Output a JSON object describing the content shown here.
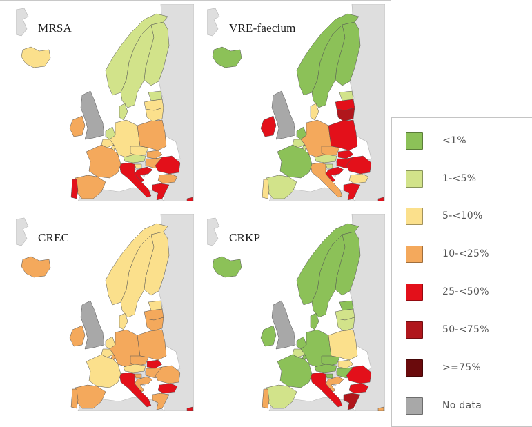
{
  "figure": {
    "panels": [
      {
        "id": "mrsa",
        "title": "MRSA"
      },
      {
        "id": "vre",
        "title": "VRE-faecium"
      },
      {
        "id": "crec",
        "title": "CREC"
      },
      {
        "id": "crkp",
        "title": "CRKP"
      }
    ]
  },
  "legend": {
    "items": [
      {
        "label": "<1%",
        "color": "#8cc158"
      },
      {
        "label": "1-<5%",
        "color": "#d2e38a"
      },
      {
        "label": "5-<10%",
        "color": "#fbe08c"
      },
      {
        "label": "10-<25%",
        "color": "#f4a95c"
      },
      {
        "label": "25-<50%",
        "color": "#e3101a"
      },
      {
        "label": "50-<75%",
        "color": "#b0161c"
      },
      {
        "label": ">=75%",
        "color": "#6a0a0c"
      },
      {
        "label": "No data",
        "color": "#a8a8a8"
      }
    ]
  },
  "colors": {
    "background_land": "#dedede",
    "sea": "#ffffff",
    "border": "#555555"
  },
  "chart_data": [
    {
      "type": "choropleth",
      "title": "MRSA",
      "categories": [
        "<1%",
        "1-<5%",
        "5-<10%",
        "10-<25%",
        "25-<50%",
        "50-<75%",
        ">=75%",
        "No data"
      ],
      "regions": {
        "Iceland": "5-<10%",
        "Norway": "1-<5%",
        "Sweden": "1-<5%",
        "Finland": "1-<5%",
        "Estonia": "1-<5%",
        "Latvia": "5-<10%",
        "Lithuania": "5-<10%",
        "Denmark": "1-<5%",
        "Ireland": "10-<25%",
        "United Kingdom": "No data",
        "Netherlands": "1-<5%",
        "Belgium": "5-<10%",
        "Luxembourg": "5-<10%",
        "Germany": "5-<10%",
        "Poland": "10-<25%",
        "Czechia": "5-<10%",
        "Slovakia": "10-<25%",
        "Austria": "1-<5%",
        "Hungary": "10-<25%",
        "Slovenia": "5-<10%",
        "Croatia": "25-<50%",
        "Romania": "25-<50%",
        "Bulgaria": "10-<25%",
        "Greece": "25-<50%",
        "Cyprus": "25-<50%",
        "Malta": "25-<50%",
        "Italy": "25-<50%",
        "France": "10-<25%",
        "Spain": "10-<25%",
        "Portugal": "25-<50%"
      }
    },
    {
      "type": "choropleth",
      "title": "VRE-faecium",
      "categories": [
        "<1%",
        "1-<5%",
        "5-<10%",
        "10-<25%",
        "25-<50%",
        "50-<75%",
        ">=75%",
        "No data"
      ],
      "regions": {
        "Iceland": "<1%",
        "Norway": "<1%",
        "Sweden": "<1%",
        "Finland": "<1%",
        "Estonia": "1-<5%",
        "Latvia": "25-<50%",
        "Lithuania": "50-<75%",
        "Denmark": "5-<10%",
        "Ireland": "25-<50%",
        "United Kingdom": "No data",
        "Netherlands": "<1%",
        "Belgium": "1-<5%",
        "Luxembourg": "1-<5%",
        "Germany": "10-<25%",
        "Poland": "25-<50%",
        "Czechia": "10-<25%",
        "Slovakia": "25-<50%",
        "Austria": "1-<5%",
        "Hungary": "25-<50%",
        "Slovenia": "1-<5%",
        "Croatia": "25-<50%",
        "Romania": "25-<50%",
        "Bulgaria": "5-<10%",
        "Greece": "25-<50%",
        "Cyprus": "25-<50%",
        "Malta": "1-<5%",
        "Italy": "10-<25%",
        "France": "<1%",
        "Spain": "1-<5%",
        "Portugal": "5-<10%"
      }
    },
    {
      "type": "choropleth",
      "title": "CREC",
      "categories": [
        "<1%",
        "1-<5%",
        "5-<10%",
        "10-<25%",
        "25-<50%",
        "50-<75%",
        ">=75%",
        "No data"
      ],
      "regions": {
        "Iceland": "10-<25%",
        "Norway": "5-<10%",
        "Sweden": "5-<10%",
        "Finland": "5-<10%",
        "Estonia": "5-<10%",
        "Latvia": "10-<25%",
        "Lithuania": "10-<25%",
        "Denmark": "5-<10%",
        "Ireland": "10-<25%",
        "United Kingdom": "No data",
        "Netherlands": "5-<10%",
        "Belgium": "5-<10%",
        "Luxembourg": "10-<25%",
        "Germany": "10-<25%",
        "Poland": "10-<25%",
        "Czechia": "10-<25%",
        "Slovakia": "25-<50%",
        "Austria": "5-<10%",
        "Hungary": "10-<25%",
        "Slovenia": "10-<25%",
        "Croatia": "10-<25%",
        "Romania": "10-<25%",
        "Bulgaria": "25-<50%",
        "Greece": "10-<25%",
        "Cyprus": "25-<50%",
        "Malta": "10-<25%",
        "Italy": "25-<50%",
        "France": "5-<10%",
        "Spain": "10-<25%",
        "Portugal": "10-<25%"
      }
    },
    {
      "type": "choropleth",
      "title": "CRKP",
      "categories": [
        "<1%",
        "1-<5%",
        "5-<10%",
        "10-<25%",
        "25-<50%",
        "50-<75%",
        ">=75%",
        "No data"
      ],
      "regions": {
        "Iceland": "<1%",
        "Norway": "<1%",
        "Sweden": "<1%",
        "Finland": "<1%",
        "Estonia": "<1%",
        "Latvia": "1-<5%",
        "Lithuania": "1-<5%",
        "Denmark": "<1%",
        "Ireland": "<1%",
        "United Kingdom": "No data",
        "Netherlands": "<1%",
        "Belgium": "1-<5%",
        "Luxembourg": "<1%",
        "Germany": "<1%",
        "Poland": "5-<10%",
        "Czechia": "<1%",
        "Slovakia": "5-<10%",
        "Austria": "<1%",
        "Hungary": "<1%",
        "Slovenia": "<1%",
        "Croatia": "10-<25%",
        "Romania": "25-<50%",
        "Bulgaria": "25-<50%",
        "Greece": "50-<75%",
        "Cyprus": "10-<25%",
        "Malta": "<1%",
        "Italy": "25-<50%",
        "France": "<1%",
        "Spain": "1-<5%",
        "Portugal": "10-<25%"
      }
    }
  ]
}
